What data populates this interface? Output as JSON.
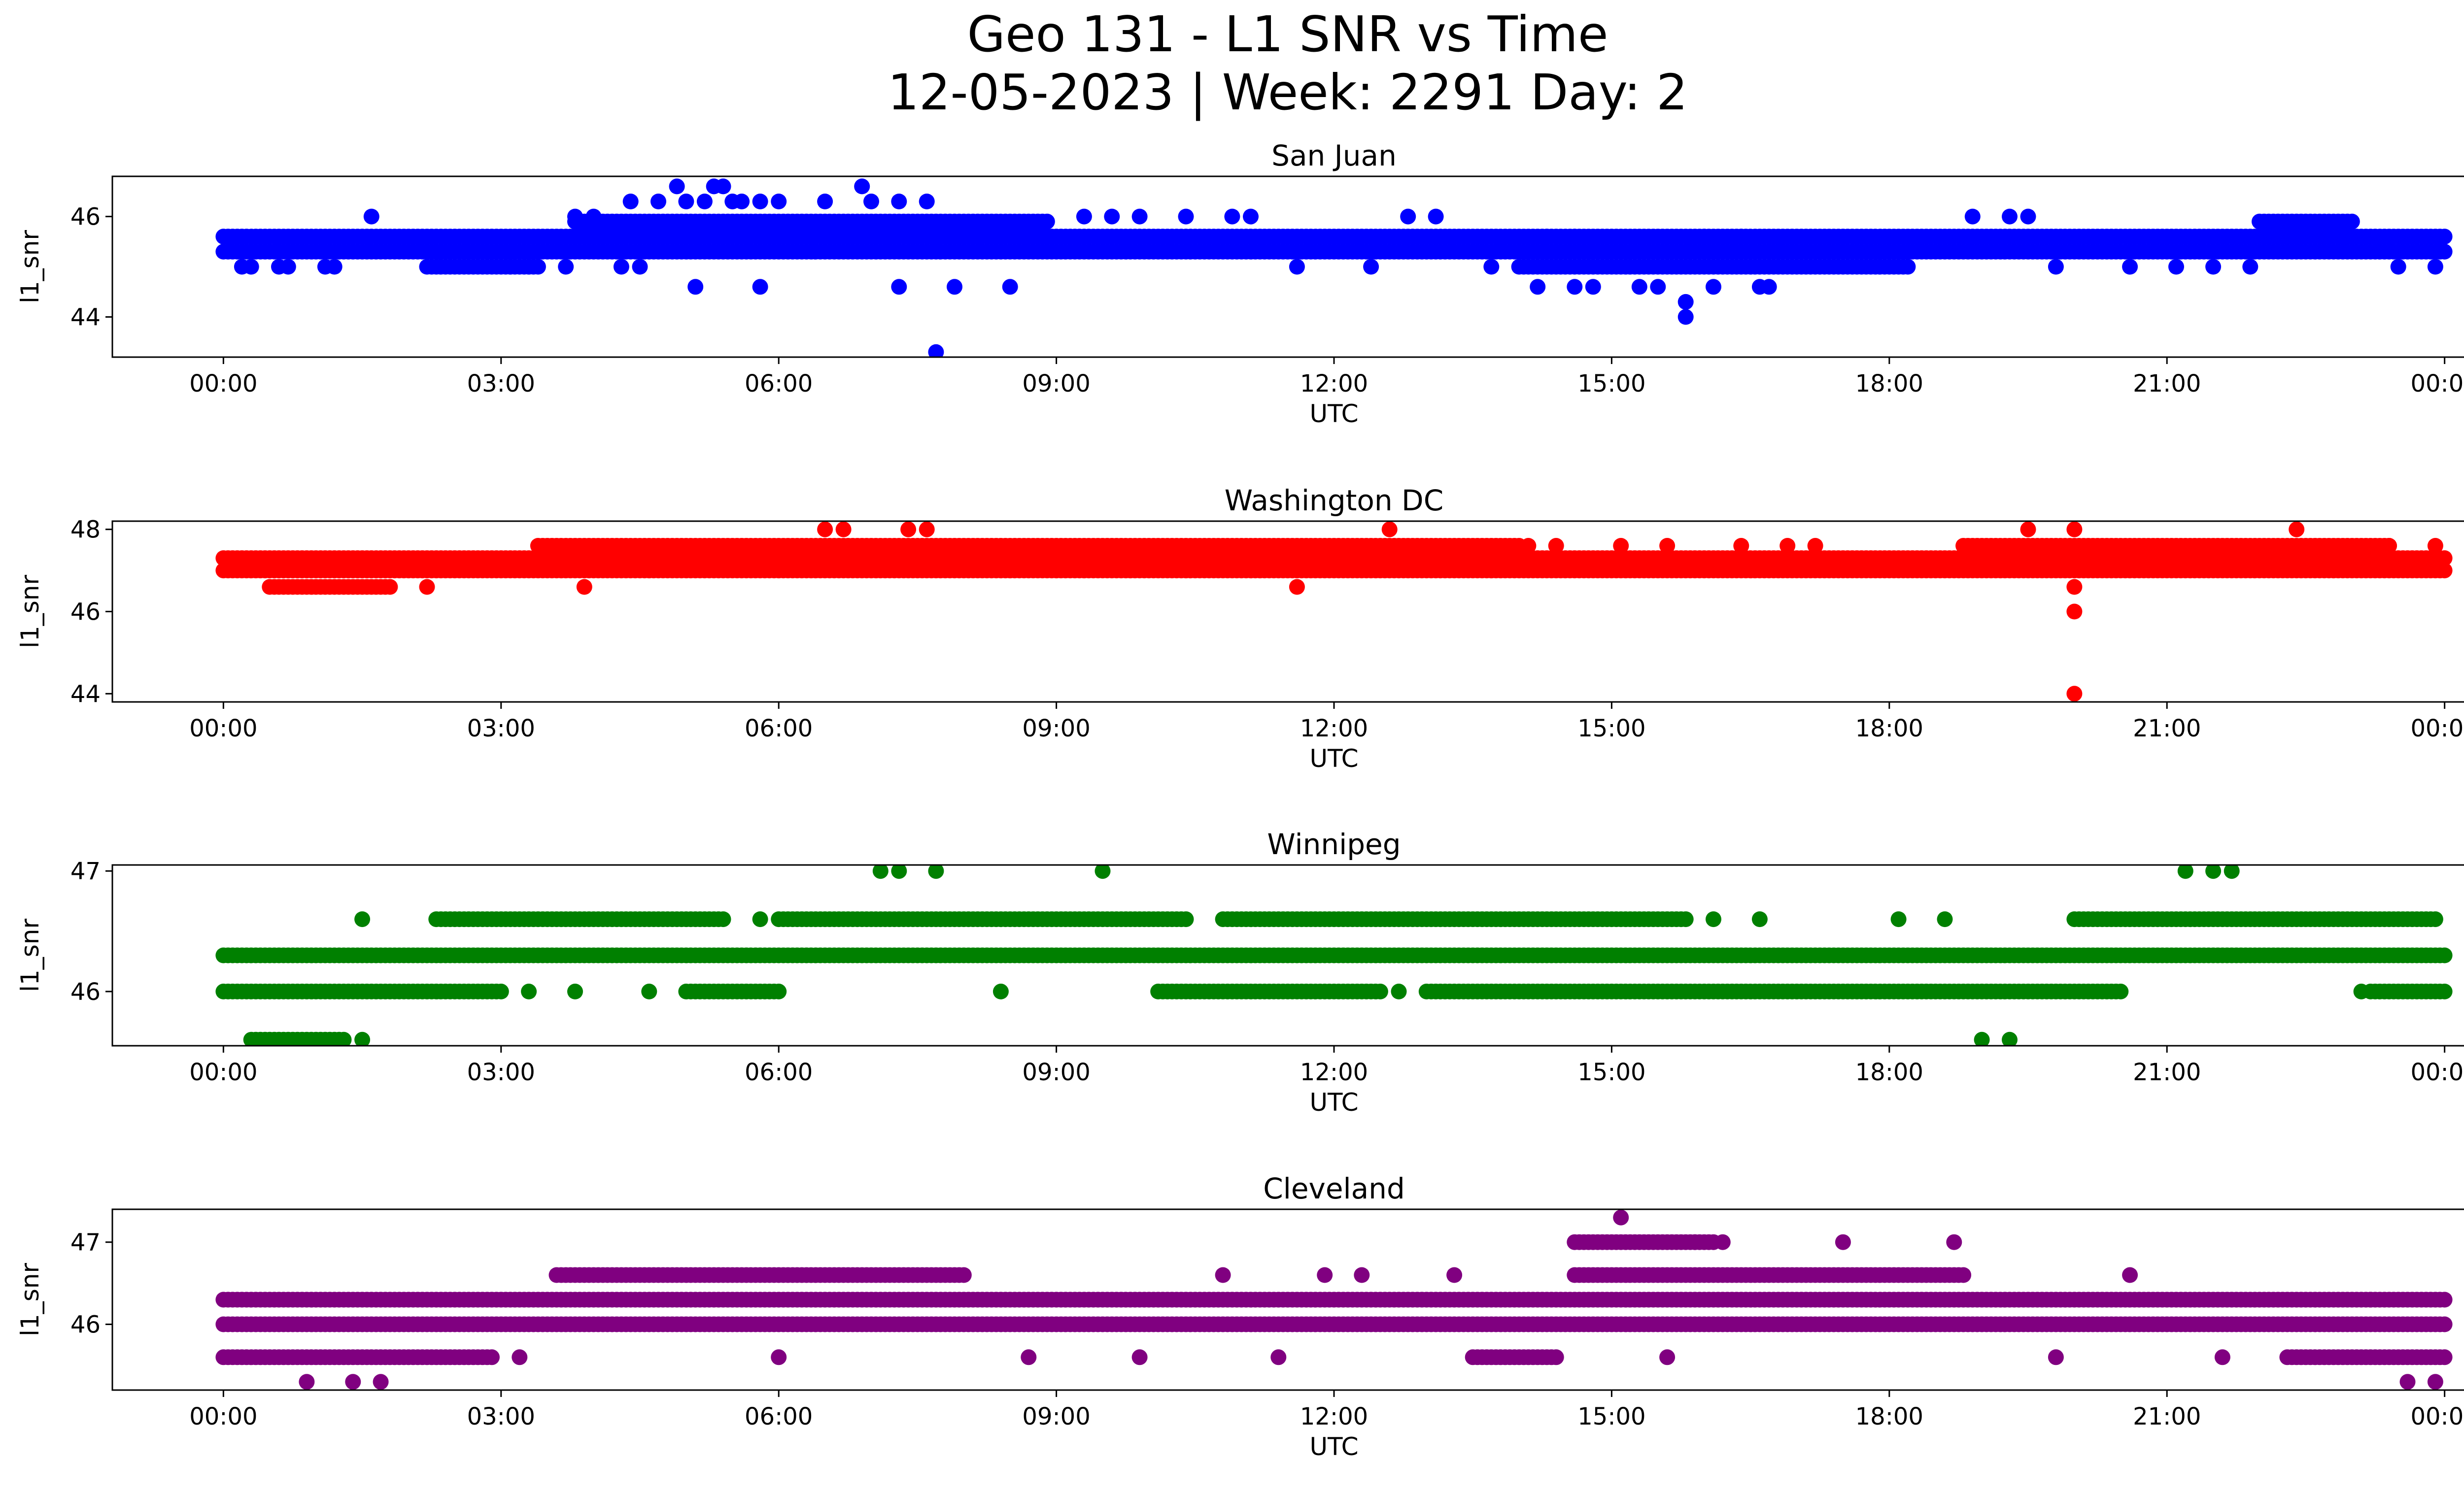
{
  "figure": {
    "title_line1": "Geo 131 - L1 SNR vs Time",
    "title_line2": "12-05-2023 | Week: 2291 Day: 2"
  },
  "chart_data": [
    {
      "type": "scatter",
      "title": "San Juan",
      "xlabel": "UTC",
      "ylabel": "l1_snr",
      "color": "#0000ff",
      "x_unit": "hours UTC",
      "xlim": [
        -1.2,
        25.2
      ],
      "ylim": [
        43.2,
        46.8
      ],
      "xticks": [
        "00:00",
        "03:00",
        "06:00",
        "09:00",
        "12:00",
        "15:00",
        "18:00",
        "21:00",
        "00:00"
      ],
      "yticks": [
        44,
        46
      ],
      "grid": false,
      "bands": [
        {
          "y": 45.6,
          "start": 0.0,
          "end": 24.0
        },
        {
          "y": 45.3,
          "start": 0.0,
          "end": 24.0
        },
        {
          "y": 45.9,
          "start": 3.8,
          "end": 8.9
        },
        {
          "y": 45.0,
          "start": 2.2,
          "end": 3.4
        },
        {
          "y": 45.0,
          "start": 14.0,
          "end": 18.2
        },
        {
          "y": 45.9,
          "start": 22.0,
          "end": 23.0
        }
      ],
      "points": [
        [
          0.2,
          45.0
        ],
        [
          0.3,
          45.0
        ],
        [
          0.6,
          45.0
        ],
        [
          0.7,
          45.0
        ],
        [
          1.1,
          45.0
        ],
        [
          1.2,
          45.0
        ],
        [
          1.6,
          46.0
        ],
        [
          3.1,
          45.0
        ],
        [
          3.3,
          45.0
        ],
        [
          3.7,
          45.0
        ],
        [
          3.8,
          46.0
        ],
        [
          4.0,
          46.0
        ],
        [
          4.3,
          45.0
        ],
        [
          4.5,
          45.0
        ],
        [
          4.4,
          46.3
        ],
        [
          4.7,
          46.3
        ],
        [
          4.9,
          46.6
        ],
        [
          5.0,
          46.3
        ],
        [
          5.2,
          46.3
        ],
        [
          5.3,
          46.6
        ],
        [
          5.4,
          46.6
        ],
        [
          5.5,
          46.3
        ],
        [
          5.6,
          46.3
        ],
        [
          5.8,
          46.3
        ],
        [
          6.0,
          46.3
        ],
        [
          6.5,
          46.3
        ],
        [
          6.9,
          46.6
        ],
        [
          7.0,
          46.3
        ],
        [
          7.3,
          46.3
        ],
        [
          7.6,
          46.3
        ],
        [
          5.1,
          44.6
        ],
        [
          5.8,
          44.6
        ],
        [
          7.3,
          44.6
        ],
        [
          7.9,
          44.6
        ],
        [
          8.5,
          44.6
        ],
        [
          7.7,
          43.3
        ],
        [
          9.3,
          46.0
        ],
        [
          9.6,
          46.0
        ],
        [
          9.9,
          46.0
        ],
        [
          10.4,
          46.0
        ],
        [
          10.9,
          46.0
        ],
        [
          11.1,
          46.0
        ],
        [
          11.6,
          45.0
        ],
        [
          12.4,
          45.0
        ],
        [
          12.8,
          46.0
        ],
        [
          13.1,
          46.0
        ],
        [
          13.7,
          45.0
        ],
        [
          14.2,
          44.6
        ],
        [
          14.6,
          44.6
        ],
        [
          14.8,
          44.6
        ],
        [
          15.3,
          44.6
        ],
        [
          15.5,
          44.6
        ],
        [
          15.8,
          44.3
        ],
        [
          15.8,
          44.0
        ],
        [
          16.1,
          44.6
        ],
        [
          16.6,
          44.6
        ],
        [
          16.7,
          44.6
        ],
        [
          14.3,
          45.6
        ],
        [
          14.6,
          45.6
        ],
        [
          16.0,
          45.6
        ],
        [
          16.4,
          45.6
        ],
        [
          18.9,
          46.0
        ],
        [
          19.3,
          46.0
        ],
        [
          19.5,
          46.0
        ],
        [
          19.8,
          45.0
        ],
        [
          20.6,
          45.0
        ],
        [
          21.1,
          45.0
        ],
        [
          21.5,
          45.0
        ],
        [
          21.9,
          45.0
        ],
        [
          23.5,
          45.0
        ],
        [
          23.9,
          45.0
        ]
      ]
    },
    {
      "type": "scatter",
      "title": "Washington DC",
      "xlabel": "UTC",
      "ylabel": "l1_snr",
      "color": "#ff0000",
      "x_unit": "hours UTC",
      "xlim": [
        -1.2,
        25.2
      ],
      "ylim": [
        43.8,
        48.2
      ],
      "xticks": [
        "00:00",
        "03:00",
        "06:00",
        "09:00",
        "12:00",
        "15:00",
        "18:00",
        "21:00",
        "00:00"
      ],
      "yticks": [
        44,
        46,
        48
      ],
      "grid": false,
      "bands": [
        {
          "y": 47.3,
          "start": 0.0,
          "end": 24.0
        },
        {
          "y": 47.0,
          "start": 0.0,
          "end": 24.0
        },
        {
          "y": 47.6,
          "start": 3.4,
          "end": 14.0
        },
        {
          "y": 47.6,
          "start": 18.8,
          "end": 23.4
        },
        {
          "y": 46.6,
          "start": 0.5,
          "end": 1.8
        }
      ],
      "points": [
        [
          2.2,
          46.6
        ],
        [
          3.9,
          46.6
        ],
        [
          4.6,
          47.0
        ],
        [
          6.0,
          47.0
        ],
        [
          6.5,
          48.0
        ],
        [
          6.7,
          48.0
        ],
        [
          7.4,
          48.0
        ],
        [
          7.6,
          48.0
        ],
        [
          8.5,
          47.0
        ],
        [
          9.0,
          47.0
        ],
        [
          9.3,
          47.0
        ],
        [
          9.8,
          47.0
        ],
        [
          10.4,
          47.0
        ],
        [
          11.2,
          47.0
        ],
        [
          11.6,
          46.6
        ],
        [
          11.6,
          47.0
        ],
        [
          12.6,
          48.0
        ],
        [
          13.7,
          47.0
        ],
        [
          14.1,
          47.6
        ],
        [
          14.4,
          47.6
        ],
        [
          15.1,
          47.6
        ],
        [
          15.6,
          47.6
        ],
        [
          16.4,
          47.6
        ],
        [
          16.9,
          47.6
        ],
        [
          17.2,
          47.6
        ],
        [
          19.5,
          48.0
        ],
        [
          20.0,
          48.0
        ],
        [
          20.0,
          46.6
        ],
        [
          20.0,
          46.0
        ],
        [
          20.0,
          44.0
        ],
        [
          22.4,
          48.0
        ],
        [
          22.8,
          47.0
        ],
        [
          23.4,
          47.6
        ],
        [
          23.9,
          47.6
        ]
      ]
    },
    {
      "type": "scatter",
      "title": "Winnipeg",
      "xlabel": "UTC",
      "ylabel": "l1_snr",
      "color": "#008000",
      "x_unit": "hours UTC",
      "xlim": [
        -1.2,
        25.2
      ],
      "ylim": [
        45.55,
        47.05
      ],
      "xticks": [
        "00:00",
        "03:00",
        "06:00",
        "09:00",
        "12:00",
        "15:00",
        "18:00",
        "21:00",
        "00:00"
      ],
      "yticks": [
        46,
        47
      ],
      "grid": false,
      "bands": [
        {
          "y": 46.3,
          "start": 0.0,
          "end": 24.0
        },
        {
          "y": 46.0,
          "start": 0.0,
          "end": 3.0
        },
        {
          "y": 46.6,
          "start": 2.3,
          "end": 5.4
        },
        {
          "y": 46.0,
          "start": 5.0,
          "end": 6.0
        },
        {
          "y": 46.6,
          "start": 6.0,
          "end": 10.4
        },
        {
          "y": 46.0,
          "start": 10.1,
          "end": 12.5
        },
        {
          "y": 46.6,
          "start": 10.8,
          "end": 15.8
        },
        {
          "y": 46.0,
          "start": 13.0,
          "end": 20.5
        },
        {
          "y": 46.6,
          "start": 20.0,
          "end": 23.9
        },
        {
          "y": 46.0,
          "start": 23.2,
          "end": 24.0
        },
        {
          "y": 45.6,
          "start": 0.3,
          "end": 1.3
        }
      ],
      "points": [
        [
          1.5,
          46.6
        ],
        [
          1.5,
          45.6
        ],
        [
          3.3,
          46.0
        ],
        [
          3.8,
          46.0
        ],
        [
          4.6,
          46.0
        ],
        [
          5.8,
          46.6
        ],
        [
          7.1,
          47.0
        ],
        [
          7.3,
          47.0
        ],
        [
          7.7,
          47.0
        ],
        [
          8.4,
          46.0
        ],
        [
          9.5,
          47.0
        ],
        [
          12.7,
          46.0
        ],
        [
          16.1,
          46.6
        ],
        [
          16.6,
          46.6
        ],
        [
          18.1,
          46.6
        ],
        [
          18.6,
          46.6
        ],
        [
          19.0,
          45.6
        ],
        [
          19.3,
          45.6
        ],
        [
          21.2,
          47.0
        ],
        [
          21.5,
          47.0
        ],
        [
          21.7,
          47.0
        ],
        [
          23.1,
          46.0
        ]
      ]
    },
    {
      "type": "scatter",
      "title": "Cleveland",
      "xlabel": "UTC",
      "ylabel": "l1_snr",
      "color": "#800080",
      "x_unit": "hours UTC",
      "xlim": [
        -1.2,
        25.2
      ],
      "ylim": [
        45.2,
        47.4
      ],
      "xticks": [
        "00:00",
        "03:00",
        "06:00",
        "09:00",
        "12:00",
        "15:00",
        "18:00",
        "21:00",
        "00:00"
      ],
      "yticks": [
        46,
        47
      ],
      "grid": false,
      "bands": [
        {
          "y": 46.0,
          "start": 0.0,
          "end": 24.0
        },
        {
          "y": 46.3,
          "start": 0.0,
          "end": 24.0
        },
        {
          "y": 45.6,
          "start": 0.0,
          "end": 2.9
        },
        {
          "y": 46.6,
          "start": 3.6,
          "end": 8.0
        },
        {
          "y": 46.6,
          "start": 14.6,
          "end": 18.8
        },
        {
          "y": 45.6,
          "start": 13.5,
          "end": 14.4
        },
        {
          "y": 45.6,
          "start": 22.3,
          "end": 24.0
        },
        {
          "y": 47.0,
          "start": 14.6,
          "end": 16.1
        }
      ],
      "points": [
        [
          0.9,
          45.3
        ],
        [
          1.4,
          45.3
        ],
        [
          1.7,
          45.3
        ],
        [
          3.2,
          45.6
        ],
        [
          6.0,
          45.6
        ],
        [
          8.7,
          45.6
        ],
        [
          9.9,
          45.6
        ],
        [
          10.8,
          46.6
        ],
        [
          11.4,
          45.6
        ],
        [
          11.9,
          46.6
        ],
        [
          12.3,
          46.6
        ],
        [
          13.3,
          46.6
        ],
        [
          15.1,
          47.3
        ],
        [
          15.9,
          47.0
        ],
        [
          16.2,
          47.0
        ],
        [
          17.5,
          47.0
        ],
        [
          18.7,
          47.0
        ],
        [
          19.8,
          45.6
        ],
        [
          20.6,
          46.6
        ],
        [
          21.6,
          45.6
        ],
        [
          23.2,
          46.3
        ],
        [
          23.6,
          45.3
        ],
        [
          23.9,
          45.3
        ],
        [
          15.6,
          45.6
        ]
      ]
    }
  ]
}
